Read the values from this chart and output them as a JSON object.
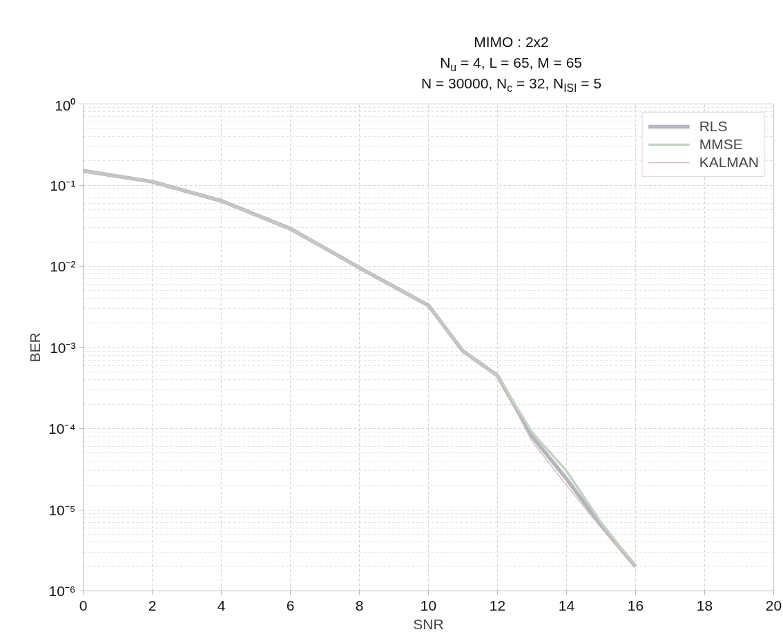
{
  "chart_data": {
    "type": "line",
    "title": "MIMO : 2x2",
    "subtitle": [
      "N$_{u}$ = 4, L = 65, M = 65",
      "N = 30000, N$_{c}$ = 32, N$_{ISI}$ = 5"
    ],
    "xlabel": "SNR",
    "ylabel": "BER",
    "log": "y",
    "x": [
      0,
      2,
      4,
      6,
      8,
      10,
      11,
      12,
      13,
      14,
      15,
      16
    ],
    "series": [
      {
        "name": "RLS",
        "color": "#b4b4bc",
        "values": [
          0.15,
          0.11,
          0.064,
          0.029,
          0.0096,
          0.0033,
          0.0009,
          0.00045,
          8e-05,
          2.4e-05,
          6.4e-06,
          2e-06
        ]
      },
      {
        "name": "MMSE",
        "color": "#c4d2c4",
        "values": [
          0.15,
          0.11,
          0.064,
          0.029,
          0.0096,
          0.0033,
          0.0009,
          0.00045,
          9e-05,
          3e-05,
          7e-06,
          2e-06
        ]
      },
      {
        "name": "KALMAN",
        "color": "#d2bcbc",
        "values": [
          0.15,
          0.11,
          0.064,
          0.029,
          0.0096,
          0.0033,
          0.0009,
          0.00045,
          7e-05,
          2e-05,
          6e-06,
          2e-06
        ]
      }
    ],
    "xlim": [
      0,
      20
    ],
    "ylim": [
      1e-06,
      1
    ],
    "xticks": [
      0,
      2,
      4,
      6,
      8,
      10,
      12,
      14,
      16,
      18,
      20
    ],
    "yticks": [
      {
        "value": 1e-06,
        "label": "10⁻⁶"
      },
      {
        "value": 1e-05,
        "label": "10⁻⁵"
      },
      {
        "value": 0.0001,
        "label": "10⁻⁴"
      },
      {
        "value": 0.001,
        "label": "10⁻³"
      },
      {
        "value": 0.01,
        "label": "10⁻²"
      },
      {
        "value": 0.1,
        "label": "10⁻¹"
      },
      {
        "value": 1,
        "label": "10⁰"
      }
    ],
    "grid": true,
    "legend": "top right",
    "marker": "none",
    "line_style": "solid"
  }
}
